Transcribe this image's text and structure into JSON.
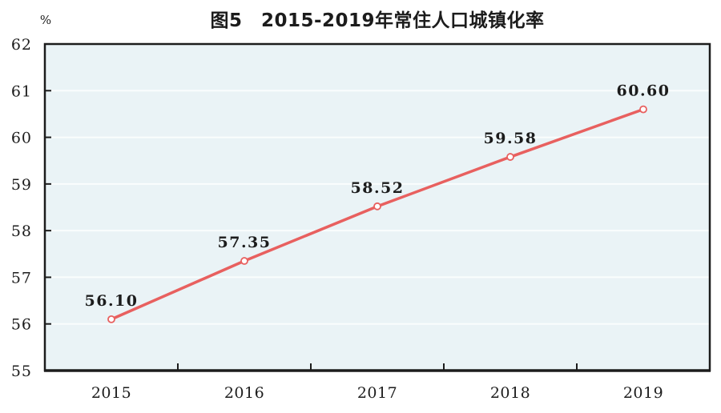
{
  "chart_data": {
    "type": "line",
    "title": "图5　2015-2019年常住人口城镇化率",
    "categories": [
      "2015",
      "2016",
      "2017",
      "2018",
      "2019"
    ],
    "series": [
      {
        "name": "常住人口城镇化率",
        "values": [
          56.1,
          57.35,
          58.52,
          59.58,
          60.6
        ]
      }
    ],
    "point_labels": [
      "56.10",
      "57.35",
      "58.52",
      "59.58",
      "60.60"
    ],
    "xlabel": "",
    "ylabel": "%",
    "ylim": [
      55,
      62
    ],
    "ytick_step": 1,
    "yticks": [
      55,
      56,
      57,
      58,
      59,
      60,
      61,
      62
    ],
    "grid": "horizontal",
    "legend": "none",
    "marker": "open-circle",
    "colors": {
      "line": "#e8605f",
      "marker_fill": "#ffffff",
      "plot_bg": "#eaf3f6",
      "gridline": "#fafdfd",
      "axis": "#1c1c1c",
      "text": "#1c1c1c"
    }
  }
}
